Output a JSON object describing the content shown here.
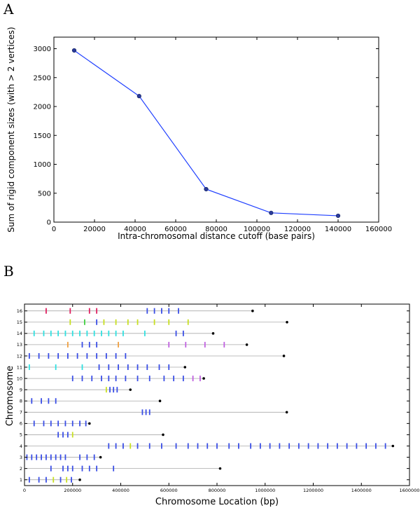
{
  "panels": [
    {
      "label": "A"
    },
    {
      "label": "B"
    }
  ],
  "chart_data": [
    {
      "type": "line",
      "panel": "A",
      "xlabel": "Intra-chromosomal distance cutoff (base pairs)",
      "ylabel": "Sum of rigid component sizes (with > 2 vertices)",
      "xlim": [
        0,
        160000
      ],
      "ylim": [
        0,
        3200
      ],
      "xticks": [
        0,
        20000,
        40000,
        60000,
        80000,
        100000,
        120000,
        140000,
        160000
      ],
      "yticks": [
        0,
        500,
        1000,
        1500,
        2000,
        2500,
        3000
      ],
      "line_color": "#1f3fff",
      "marker_color": "#2a3a9a",
      "grid": false,
      "x": [
        10000,
        42000,
        75000,
        107000,
        140000
      ],
      "y": [
        2970,
        2180,
        570,
        160,
        110
      ]
    },
    {
      "type": "scatter",
      "panel": "B",
      "xlabel": "Chromosome Location (bp)",
      "ylabel": "Chromosome",
      "xlim": [
        0,
        1600000
      ],
      "xticks": [
        0,
        200000,
        400000,
        600000,
        800000,
        1000000,
        1200000,
        1400000,
        1600000
      ],
      "yticks": [
        "1",
        "2",
        "3",
        "4",
        "5",
        "6",
        "7",
        "8",
        "9",
        "10",
        "11",
        "12",
        "13",
        "14",
        "15",
        "16"
      ],
      "grid": false,
      "chromosome_line_color": "#aaaaaa",
      "end_marker_color": "#000000",
      "chromosomes": [
        {
          "name": "1",
          "length": 230000,
          "marks": [
            {
              "x": 20000,
              "c": "#3a4ee6"
            },
            {
              "x": 60000,
              "c": "#3a4ee6"
            },
            {
              "x": 90000,
              "c": "#3a4ee6"
            },
            {
              "x": 120000,
              "c": "#c8e020"
            },
            {
              "x": 150000,
              "c": "#3a4ee6"
            },
            {
              "x": 175000,
              "c": "#c8e020"
            },
            {
              "x": 195000,
              "c": "#3a4ee6"
            }
          ]
        },
        {
          "name": "2",
          "length": 813000,
          "marks": [
            {
              "x": 110000,
              "c": "#3a4ee6"
            },
            {
              "x": 160000,
              "c": "#3a4ee6"
            },
            {
              "x": 180000,
              "c": "#3a4ee6"
            },
            {
              "x": 200000,
              "c": "#3a4ee6"
            },
            {
              "x": 240000,
              "c": "#3a4ee6"
            },
            {
              "x": 270000,
              "c": "#3a4ee6"
            },
            {
              "x": 300000,
              "c": "#3a4ee6"
            },
            {
              "x": 370000,
              "c": "#3a4ee6"
            }
          ]
        },
        {
          "name": "3",
          "length": 316000,
          "marks": [
            {
              "x": 10000,
              "c": "#3a4ee6"
            },
            {
              "x": 30000,
              "c": "#3a4ee6"
            },
            {
              "x": 50000,
              "c": "#3a4ee6"
            },
            {
              "x": 70000,
              "c": "#3a4ee6"
            },
            {
              "x": 90000,
              "c": "#3a4ee6"
            },
            {
              "x": 110000,
              "c": "#3a4ee6"
            },
            {
              "x": 130000,
              "c": "#3a4ee6"
            },
            {
              "x": 150000,
              "c": "#3a4ee6"
            },
            {
              "x": 170000,
              "c": "#3a4ee6"
            },
            {
              "x": 230000,
              "c": "#3a4ee6"
            },
            {
              "x": 260000,
              "c": "#3a4ee6"
            },
            {
              "x": 290000,
              "c": "#3a4ee6"
            }
          ]
        },
        {
          "name": "4",
          "length": 1531000,
          "marks": [
            {
              "x": 350000,
              "c": "#3a4ee6"
            },
            {
              "x": 380000,
              "c": "#3a4ee6"
            },
            {
              "x": 410000,
              "c": "#3a4ee6"
            },
            {
              "x": 440000,
              "c": "#c8e020"
            },
            {
              "x": 470000,
              "c": "#3a4ee6"
            },
            {
              "x": 520000,
              "c": "#3a4ee6"
            },
            {
              "x": 570000,
              "c": "#3a4ee6"
            },
            {
              "x": 630000,
              "c": "#3a4ee6"
            },
            {
              "x": 680000,
              "c": "#3a4ee6"
            },
            {
              "x": 720000,
              "c": "#3a4ee6"
            },
            {
              "x": 760000,
              "c": "#3a4ee6"
            },
            {
              "x": 800000,
              "c": "#3a4ee6"
            },
            {
              "x": 850000,
              "c": "#3a4ee6"
            },
            {
              "x": 890000,
              "c": "#3a4ee6"
            },
            {
              "x": 940000,
              "c": "#3a4ee6"
            },
            {
              "x": 980000,
              "c": "#3a4ee6"
            },
            {
              "x": 1020000,
              "c": "#3a4ee6"
            },
            {
              "x": 1060000,
              "c": "#3a4ee6"
            },
            {
              "x": 1100000,
              "c": "#3a4ee6"
            },
            {
              "x": 1140000,
              "c": "#3a4ee6"
            },
            {
              "x": 1180000,
              "c": "#3a4ee6"
            },
            {
              "x": 1220000,
              "c": "#3a4ee6"
            },
            {
              "x": 1260000,
              "c": "#3a4ee6"
            },
            {
              "x": 1300000,
              "c": "#3a4ee6"
            },
            {
              "x": 1340000,
              "c": "#3a4ee6"
            },
            {
              "x": 1380000,
              "c": "#3a4ee6"
            },
            {
              "x": 1420000,
              "c": "#3a4ee6"
            },
            {
              "x": 1460000,
              "c": "#3a4ee6"
            },
            {
              "x": 1500000,
              "c": "#3a4ee6"
            }
          ]
        },
        {
          "name": "5",
          "length": 576000,
          "marks": [
            {
              "x": 140000,
              "c": "#3a4ee6"
            },
            {
              "x": 160000,
              "c": "#3a4ee6"
            },
            {
              "x": 180000,
              "c": "#3a4ee6"
            },
            {
              "x": 200000,
              "c": "#c8e020"
            }
          ]
        },
        {
          "name": "6",
          "length": 270000,
          "marks": [
            {
              "x": 40000,
              "c": "#3a4ee6"
            },
            {
              "x": 80000,
              "c": "#3a4ee6"
            },
            {
              "x": 110000,
              "c": "#3a4ee6"
            },
            {
              "x": 140000,
              "c": "#3a4ee6"
            },
            {
              "x": 170000,
              "c": "#3a4ee6"
            },
            {
              "x": 200000,
              "c": "#3a4ee6"
            },
            {
              "x": 230000,
              "c": "#3a4ee6"
            },
            {
              "x": 255000,
              "c": "#3a4ee6"
            }
          ]
        },
        {
          "name": "7",
          "length": 1090000,
          "marks": [
            {
              "x": 490000,
              "c": "#3a4ee6"
            },
            {
              "x": 505000,
              "c": "#3a4ee6"
            },
            {
              "x": 520000,
              "c": "#3a4ee6"
            }
          ]
        },
        {
          "name": "8",
          "length": 563000,
          "marks": [
            {
              "x": 30000,
              "c": "#3a4ee6"
            },
            {
              "x": 70000,
              "c": "#3a4ee6"
            },
            {
              "x": 100000,
              "c": "#3a4ee6"
            },
            {
              "x": 130000,
              "c": "#3a4ee6"
            }
          ]
        },
        {
          "name": "9",
          "length": 440000,
          "marks": [
            {
              "x": 340000,
              "c": "#c8e020"
            },
            {
              "x": 355000,
              "c": "#3a4ee6"
            },
            {
              "x": 370000,
              "c": "#3a4ee6"
            },
            {
              "x": 385000,
              "c": "#3a4ee6"
            }
          ]
        },
        {
          "name": "10",
          "length": 745000,
          "marks": [
            {
              "x": 200000,
              "c": "#3a4ee6"
            },
            {
              "x": 240000,
              "c": "#3a4ee6"
            },
            {
              "x": 280000,
              "c": "#3a4ee6"
            },
            {
              "x": 320000,
              "c": "#3a4ee6"
            },
            {
              "x": 350000,
              "c": "#3a4ee6"
            },
            {
              "x": 380000,
              "c": "#3a4ee6"
            },
            {
              "x": 420000,
              "c": "#3a4ee6"
            },
            {
              "x": 470000,
              "c": "#3a4ee6"
            },
            {
              "x": 520000,
              "c": "#3a4ee6"
            },
            {
              "x": 580000,
              "c": "#3a4ee6"
            },
            {
              "x": 620000,
              "c": "#3a4ee6"
            },
            {
              "x": 660000,
              "c": "#3a4ee6"
            },
            {
              "x": 700000,
              "c": "#c060e0"
            },
            {
              "x": 730000,
              "c": "#c060e0"
            }
          ]
        },
        {
          "name": "11",
          "length": 667000,
          "marks": [
            {
              "x": 20000,
              "c": "#30e0e0"
            },
            {
              "x": 130000,
              "c": "#30e0e0"
            },
            {
              "x": 240000,
              "c": "#30e0e0"
            },
            {
              "x": 310000,
              "c": "#3a4ee6"
            },
            {
              "x": 350000,
              "c": "#3a4ee6"
            },
            {
              "x": 390000,
              "c": "#3a4ee6"
            },
            {
              "x": 430000,
              "c": "#3a4ee6"
            },
            {
              "x": 470000,
              "c": "#3a4ee6"
            },
            {
              "x": 510000,
              "c": "#3a4ee6"
            },
            {
              "x": 560000,
              "c": "#3a4ee6"
            },
            {
              "x": 600000,
              "c": "#3a4ee6"
            }
          ]
        },
        {
          "name": "12",
          "length": 1078000,
          "marks": [
            {
              "x": 20000,
              "c": "#3a4ee6"
            },
            {
              "x": 60000,
              "c": "#3a4ee6"
            },
            {
              "x": 100000,
              "c": "#3a4ee6"
            },
            {
              "x": 140000,
              "c": "#3a4ee6"
            },
            {
              "x": 180000,
              "c": "#3a4ee6"
            },
            {
              "x": 220000,
              "c": "#3a4ee6"
            },
            {
              "x": 260000,
              "c": "#3a4ee6"
            },
            {
              "x": 300000,
              "c": "#3a4ee6"
            },
            {
              "x": 340000,
              "c": "#3a4ee6"
            },
            {
              "x": 380000,
              "c": "#3a4ee6"
            },
            {
              "x": 420000,
              "c": "#3a4ee6"
            }
          ]
        },
        {
          "name": "13",
          "length": 924000,
          "marks": [
            {
              "x": 180000,
              "c": "#f0a040"
            },
            {
              "x": 240000,
              "c": "#3a4ee6"
            },
            {
              "x": 270000,
              "c": "#3a4ee6"
            },
            {
              "x": 300000,
              "c": "#3a4ee6"
            },
            {
              "x": 390000,
              "c": "#f0a040"
            },
            {
              "x": 600000,
              "c": "#c060e0"
            },
            {
              "x": 670000,
              "c": "#c060e0"
            },
            {
              "x": 750000,
              "c": "#c060e0"
            },
            {
              "x": 830000,
              "c": "#c060e0"
            }
          ]
        },
        {
          "name": "14",
          "length": 784000,
          "marks": [
            {
              "x": 40000,
              "c": "#30e0e0"
            },
            {
              "x": 80000,
              "c": "#30e0e0"
            },
            {
              "x": 110000,
              "c": "#30e0e0"
            },
            {
              "x": 140000,
              "c": "#30e0e0"
            },
            {
              "x": 170000,
              "c": "#30e0e0"
            },
            {
              "x": 200000,
              "c": "#30e0e0"
            },
            {
              "x": 230000,
              "c": "#30e0e0"
            },
            {
              "x": 260000,
              "c": "#30e0e0"
            },
            {
              "x": 290000,
              "c": "#30e0e0"
            },
            {
              "x": 320000,
              "c": "#30e0e0"
            },
            {
              "x": 350000,
              "c": "#30e0e0"
            },
            {
              "x": 380000,
              "c": "#30e0e0"
            },
            {
              "x": 410000,
              "c": "#30e0e0"
            },
            {
              "x": 500000,
              "c": "#30e0e0"
            },
            {
              "x": 630000,
              "c": "#3a4ee6"
            },
            {
              "x": 660000,
              "c": "#3a4ee6"
            }
          ]
        },
        {
          "name": "15",
          "length": 1091000,
          "marks": [
            {
              "x": 190000,
              "c": "#c8e020"
            },
            {
              "x": 250000,
              "c": "#40d040"
            },
            {
              "x": 300000,
              "c": "#3a4ee6"
            },
            {
              "x": 330000,
              "c": "#c8e020"
            },
            {
              "x": 380000,
              "c": "#c8e020"
            },
            {
              "x": 430000,
              "c": "#c8e020"
            },
            {
              "x": 470000,
              "c": "#c8e020"
            },
            {
              "x": 540000,
              "c": "#c8e020"
            },
            {
              "x": 600000,
              "c": "#c8e020"
            },
            {
              "x": 680000,
              "c": "#c8e020"
            }
          ]
        },
        {
          "name": "16",
          "length": 948000,
          "marks": [
            {
              "x": 90000,
              "c": "#e02060"
            },
            {
              "x": 190000,
              "c": "#e02060"
            },
            {
              "x": 270000,
              "c": "#e02060"
            },
            {
              "x": 300000,
              "c": "#e02060"
            },
            {
              "x": 510000,
              "c": "#3a4ee6"
            },
            {
              "x": 540000,
              "c": "#3a4ee6"
            },
            {
              "x": 570000,
              "c": "#3a4ee6"
            },
            {
              "x": 600000,
              "c": "#3a4ee6"
            },
            {
              "x": 640000,
              "c": "#3a4ee6"
            }
          ]
        }
      ]
    }
  ]
}
